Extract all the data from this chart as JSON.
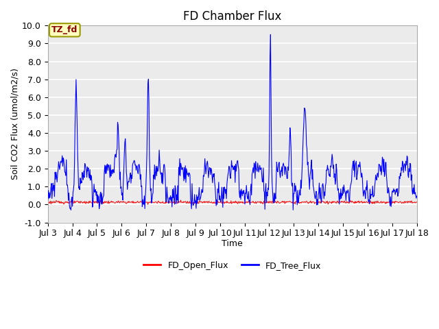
{
  "title": "FD Chamber Flux",
  "xlabel": "Time",
  "ylabel": "Soil CO2 Flux (umol/m2/s)",
  "ylim": [
    -1.0,
    10.0
  ],
  "yticks": [
    -1.0,
    0.0,
    1.0,
    2.0,
    3.0,
    4.0,
    5.0,
    6.0,
    7.0,
    8.0,
    9.0,
    10.0
  ],
  "ytick_labels": [
    "-1.0",
    "0.0",
    "1.0",
    "2.0",
    "3.0",
    "4.0",
    "5.0",
    "6.0",
    "7.0",
    "8.0",
    "9.0",
    "10.0"
  ],
  "xtick_labels": [
    "Jul 3",
    "Jul 4",
    "Jul 5",
    "Jul 6",
    "Jul 7",
    "Jul 8",
    "Jul 9",
    "Jul 10",
    "Jul 11",
    "Jul 12",
    "Jul 13",
    "Jul 14",
    "Jul 15",
    "Jul 16",
    "Jul 17",
    "Jul 18"
  ],
  "annotation_text": "TZ_fd",
  "annotation_color": "#8B0000",
  "annotation_bg": "#FFFFC0",
  "annotation_border": "#999900",
  "open_flux_color": "#FF0000",
  "tree_flux_color": "#0000FF",
  "background_color": "#EBEBEB",
  "grid_color": "#FFFFFF",
  "legend_open": "FD_Open_Flux",
  "legend_tree": "FD_Tree_Flux",
  "title_fontsize": 12,
  "axis_label_fontsize": 9,
  "tick_fontsize": 9
}
